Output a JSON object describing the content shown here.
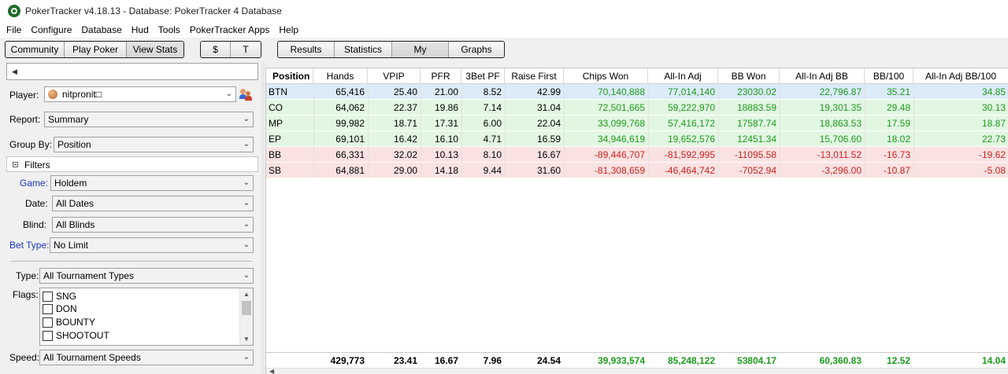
{
  "window": {
    "title": "PokerTracker v4.18.13 - Database: PokerTracker 4 Database"
  },
  "menu": [
    "File",
    "Configure",
    "Database",
    "Hud",
    "Tools",
    "PokerTracker Apps",
    "Help"
  ],
  "toolbar": {
    "group1": [
      "Community",
      "Play Poker",
      "View Stats"
    ],
    "group2": [
      "$",
      "T"
    ],
    "group3": [
      "Results",
      "Statistics",
      "My Reports",
      "Graphs"
    ]
  },
  "left": {
    "player_label": "Player:",
    "player_value": "nitpronit□",
    "report_label": "Report:",
    "report_value": "Summary",
    "groupby_label": "Group By:",
    "groupby_value": "Position",
    "filters_label": "Filters",
    "game_label": "Game:",
    "game_value": "Holdem",
    "date_label": "Date:",
    "date_value": "All Dates",
    "blind_label": "Blind:",
    "blind_value": "All Blinds",
    "bettype_label": "Bet Type:",
    "bettype_value": "No Limit",
    "type_label": "Type:",
    "type_value": "All Tournament Types",
    "flags_label": "Flags:",
    "flags": [
      "SNG",
      "DON",
      "BOUNTY",
      "SHOOTOUT"
    ],
    "speed_label": "Speed:",
    "speed_value": "All Tournament Speeds"
  },
  "table": {
    "headers": [
      "Position",
      "Hands",
      "VPIP",
      "PFR",
      "3Bet PF",
      "Raise First",
      "Chips Won",
      "All-In Adj",
      "BB Won",
      "All-In Adj BB",
      "BB/100",
      "All-In Adj BB/100"
    ],
    "rows": [
      [
        "BTN",
        "65,416",
        "25.40",
        "21.00",
        "8.52",
        "42.99",
        "70,140,888",
        "77,014,140",
        "23030.02",
        "22,796.87",
        "35.21",
        "34.85"
      ],
      [
        "CO",
        "64,062",
        "22.37",
        "19.86",
        "7.14",
        "31.04",
        "72,501,665",
        "59,222,970",
        "18883.59",
        "19,301.35",
        "29.48",
        "30.13"
      ],
      [
        "MP",
        "99,982",
        "18.71",
        "17.31",
        "6.00",
        "22.04",
        "33,099,768",
        "57,416,172",
        "17587.74",
        "18,863.53",
        "17.59",
        "18.87"
      ],
      [
        "EP",
        "69,101",
        "16.42",
        "16.10",
        "4.71",
        "16.59",
        "34,946,619",
        "19,652,576",
        "12451.34",
        "15,706.60",
        "18.02",
        "22.73"
      ],
      [
        "BB",
        "66,331",
        "32.02",
        "10.13",
        "8.10",
        "16.67",
        "-89,446,707",
        "-81,592,995",
        "-11095.58",
        "-13,011.52",
        "-16.73",
        "-19.62"
      ],
      [
        "SB",
        "64,881",
        "29.00",
        "14.18",
        "9.44",
        "31.60",
        "-81,308,659",
        "-46,464,742",
        "-7052.94",
        "-3,296.00",
        "-10.87",
        "-5.08"
      ]
    ],
    "totals": [
      "",
      "429,773",
      "23.41",
      "16.67",
      "7.96",
      "24.54",
      "39,933,574",
      "85,248,122",
      "53804.17",
      "60,360.83",
      "12.52",
      "14.04"
    ]
  },
  "colors": {
    "positive": "#1d9b1d",
    "negative": "#cc1f1f",
    "selected_row": "#dcebf8",
    "positive_row": "#e2f7e2",
    "negative_row": "#fbe2e2",
    "label_blue": "#1a35c8"
  }
}
